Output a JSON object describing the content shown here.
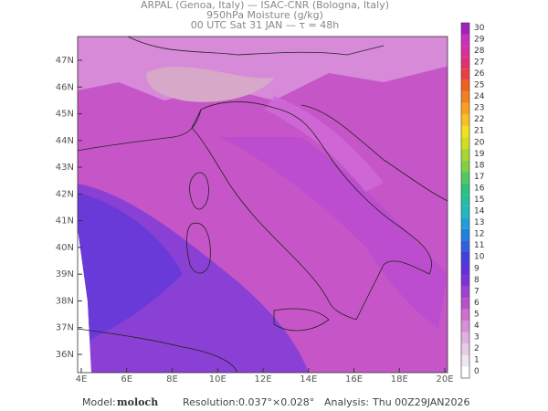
{
  "header": {
    "line1": "ARPAL (Genoa, Italy)  —  ISAC-CNR (Bologna, Italy)",
    "line2": "950hPa Moisture (g/kg)",
    "line3": "00 UTC Sat 31 JAN  —  τ = 48h"
  },
  "map": {
    "lon_labels": [
      "4E",
      "6E",
      "8E",
      "10E",
      "12E",
      "14E",
      "16E",
      "18E",
      "20E"
    ],
    "lat_labels": [
      "47N",
      "46N",
      "45N",
      "44N",
      "43N",
      "42N",
      "41N",
      "40N",
      "39N",
      "38N",
      "37N",
      "36N"
    ]
  },
  "colorbar": {
    "levels": [
      0,
      1,
      2,
      3,
      4,
      5,
      6,
      7,
      8,
      9,
      10,
      11,
      12,
      13,
      14,
      15,
      16,
      17,
      18,
      19,
      20,
      21,
      22,
      23,
      24,
      25,
      26,
      27,
      28,
      29,
      30
    ],
    "colors": [
      "#ffffff",
      "#f0e6f0",
      "#e6cce6",
      "#e0b0e0",
      "#d890d8",
      "#cc70cc",
      "#b850c8",
      "#a040d0",
      "#8030d8",
      "#6030e0",
      "#4040e0",
      "#3060e0",
      "#2080e0",
      "#20a0d8",
      "#20b8c0",
      "#20c0a0",
      "#30c080",
      "#50c860",
      "#80d040",
      "#a8d830",
      "#d0e020",
      "#f0e020",
      "#f8c020",
      "#f8a020",
      "#f08020",
      "#f06020",
      "#e84040",
      "#e03070",
      "#d830a0",
      "#c830c0",
      "#a020c0"
    ]
  },
  "footer": {
    "model_label": "Model:",
    "model": "moloch",
    "resolution_label": "Resolution:",
    "resolution": "0.037°×0.028°",
    "analysis_label": "Analysis:",
    "analysis": "Thu 00Z29JAN2026"
  }
}
